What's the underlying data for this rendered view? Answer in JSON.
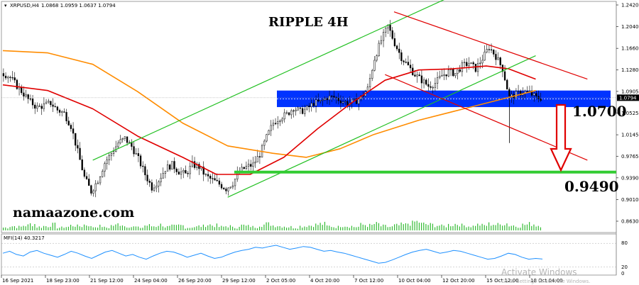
{
  "header": {
    "symbol": "XRPUSD,H4",
    "ohlc": "1.0868 1.0959 1.0637 1.0794"
  },
  "annotations": {
    "title": "RIPPLE 4H",
    "site": "namaazone.com",
    "level_upper": "1.0700",
    "level_lower": "0.9490"
  },
  "price_axis": {
    "labels": [
      "1.2420",
      "1.2040",
      "1.1660",
      "1.1280",
      "1.0905",
      "1.0525",
      "1.0145",
      "0.9765",
      "0.9390",
      "0.9010",
      "0.8630"
    ],
    "current_price_label": "1.0794"
  },
  "mfi_panel": {
    "label": "MFI(14) 40.3217",
    "axis_labels": [
      "80",
      "20",
      "0"
    ],
    "levels": [
      80,
      20
    ],
    "line_color": "#1e90ff"
  },
  "time_axis": {
    "labels": [
      "16 Sep 2021",
      "18 Sep 23:00",
      "21 Sep 12:00",
      "24 Sep 04:00",
      "26 Sep 20:00",
      "29 Sep 12:00",
      "2 Oct 05:00",
      "4 Oct 20:00",
      "7 Oct 12:00",
      "10 Oct 04:00",
      "12 Oct 20:00",
      "15 Oct 12:00",
      "18 Oct 04:00"
    ]
  },
  "watermark": {
    "line1": "Activate Windows",
    "line2": "Go to Settings to activate Windows."
  },
  "colors": {
    "candle": "#000000",
    "ma_fast": "#e00000",
    "ma_slow": "#ff8c00",
    "channel_up": "#22c022",
    "channel_down": "#e00000",
    "resistance_box": "#0033ff",
    "support_line": "#33cc33",
    "volume": "#33bb33",
    "arrow": "#e00000",
    "mfi_line": "#1e90ff"
  },
  "chart_data": {
    "type": "candlestick",
    "title": "RIPPLE 4H",
    "ylim": [
      0.863,
      1.242
    ],
    "x_range": [
      "16 Sep 2021",
      "18 Oct 04:00"
    ],
    "price_path": [
      [
        0,
        1.122
      ],
      [
        3,
        1.115
      ],
      [
        6,
        1.1
      ],
      [
        9,
        1.086
      ],
      [
        12,
        1.072
      ],
      [
        15,
        1.062
      ],
      [
        18,
        1.066
      ],
      [
        21,
        1.07
      ],
      [
        24,
        1.058
      ],
      [
        27,
        1.052
      ],
      [
        30,
        1.03
      ],
      [
        33,
        0.985
      ],
      [
        36,
        0.94
      ],
      [
        39,
        0.915
      ],
      [
        42,
        0.935
      ],
      [
        45,
        0.965
      ],
      [
        48,
        0.982
      ],
      [
        51,
        1.0
      ],
      [
        54,
        1.008
      ],
      [
        57,
        0.994
      ],
      [
        60,
        0.972
      ],
      [
        63,
        0.945
      ],
      [
        66,
        0.922
      ],
      [
        69,
        0.935
      ],
      [
        72,
        0.955
      ],
      [
        75,
        0.962
      ],
      [
        78,
        0.95
      ],
      [
        81,
        0.945
      ],
      [
        84,
        0.962
      ],
      [
        87,
        0.958
      ],
      [
        90,
        0.942
      ],
      [
        93,
        0.935
      ],
      [
        96,
        0.928
      ],
      [
        99,
        0.92
      ],
      [
        102,
        0.93
      ],
      [
        105,
        0.95
      ],
      [
        108,
        0.958
      ],
      [
        111,
        0.962
      ],
      [
        114,
        0.98
      ],
      [
        117,
        1.01
      ],
      [
        120,
        1.035
      ],
      [
        123,
        1.045
      ],
      [
        126,
        1.05
      ],
      [
        129,
        1.062
      ],
      [
        132,
        1.055
      ],
      [
        135,
        1.06
      ],
      [
        138,
        1.07
      ],
      [
        141,
        1.072
      ],
      [
        144,
        1.08
      ],
      [
        147,
        1.08
      ],
      [
        150,
        1.075
      ],
      [
        153,
        1.07
      ],
      [
        156,
        1.072
      ],
      [
        159,
        1.08
      ],
      [
        162,
        1.095
      ],
      [
        165,
        1.148
      ],
      [
        168,
        1.18
      ],
      [
        171,
        1.205
      ],
      [
        174,
        1.175
      ],
      [
        177,
        1.15
      ],
      [
        180,
        1.135
      ],
      [
        183,
        1.12
      ],
      [
        186,
        1.11
      ],
      [
        189,
        1.1
      ],
      [
        192,
        1.105
      ],
      [
        195,
        1.118
      ],
      [
        198,
        1.125
      ],
      [
        201,
        1.122
      ],
      [
        204,
        1.135
      ],
      [
        207,
        1.14
      ],
      [
        210,
        1.13
      ],
      [
        213,
        1.148
      ],
      [
        216,
        1.168
      ],
      [
        219,
        1.152
      ],
      [
        222,
        1.13
      ],
      [
        225,
        1.08
      ],
      [
        228,
        1.085
      ],
      [
        231,
        1.09
      ],
      [
        234,
        1.088
      ],
      [
        237,
        1.079
      ]
    ],
    "volume": [
      4,
      6,
      5,
      7,
      9,
      5,
      6,
      8,
      4,
      5,
      7,
      6,
      8,
      5,
      6,
      4,
      7,
      9,
      6,
      5,
      4,
      7,
      6,
      8,
      5,
      6,
      7,
      4,
      5,
      6,
      8,
      7,
      5,
      6,
      4,
      7,
      6,
      5,
      8,
      9,
      7,
      6,
      5,
      4,
      6,
      7,
      8,
      9,
      6,
      5,
      7,
      6,
      5,
      8,
      7,
      9,
      6,
      5,
      7,
      8,
      10,
      12,
      9,
      8,
      7,
      6,
      8,
      9,
      7,
      6,
      8,
      7,
      9,
      8,
      10,
      7,
      6,
      8,
      9,
      7
    ],
    "mfi": [
      55,
      60,
      52,
      48,
      58,
      62,
      55,
      50,
      45,
      52,
      60,
      55,
      48,
      42,
      50,
      58,
      62,
      55,
      48,
      52,
      45,
      40,
      48,
      55,
      60,
      58,
      52,
      45,
      50,
      55,
      48,
      42,
      45,
      52,
      58,
      62,
      65,
      70,
      68,
      72,
      75,
      70,
      65,
      68,
      72,
      70,
      65,
      60,
      62,
      58,
      55,
      50,
      45,
      40,
      35,
      30,
      32,
      38,
      45,
      52,
      58,
      62,
      65,
      60,
      55,
      58,
      62,
      60,
      55,
      50,
      45,
      40,
      42,
      48,
      55,
      52,
      45,
      40,
      42,
      40.32
    ],
    "ma_fast": [
      [
        0,
        1.102
      ],
      [
        20,
        1.092
      ],
      [
        40,
        1.06
      ],
      [
        60,
        1.012
      ],
      [
        80,
        0.975
      ],
      [
        95,
        0.945
      ],
      [
        110,
        0.945
      ],
      [
        125,
        0.975
      ],
      [
        140,
        1.025
      ],
      [
        155,
        1.07
      ],
      [
        170,
        1.11
      ],
      [
        185,
        1.128
      ],
      [
        200,
        1.13
      ],
      [
        215,
        1.135
      ],
      [
        225,
        1.13
      ],
      [
        237,
        1.112
      ]
    ],
    "ma_slow": [
      [
        0,
        1.162
      ],
      [
        20,
        1.158
      ],
      [
        40,
        1.138
      ],
      [
        60,
        1.09
      ],
      [
        80,
        1.035
      ],
      [
        100,
        0.995
      ],
      [
        120,
        0.982
      ],
      [
        135,
        0.975
      ],
      [
        150,
        0.99
      ],
      [
        165,
        1.015
      ],
      [
        185,
        1.04
      ],
      [
        205,
        1.06
      ],
      [
        225,
        1.08
      ],
      [
        237,
        1.092
      ]
    ],
    "channel_up_lower": [
      [
        100,
        0.905
      ],
      [
        237,
        1.153
      ]
    ],
    "channel_up_upper": [
      [
        40,
        0.97
      ],
      [
        200,
        1.258
      ]
    ],
    "channel_down_upper": [
      [
        174,
        1.23
      ],
      [
        260,
        1.112
      ]
    ],
    "channel_down_lower": [
      [
        170,
        1.12
      ],
      [
        260,
        0.97
      ]
    ],
    "resistance_zone": [
      1.063,
      1.092
    ],
    "support_level": 0.949,
    "targets": [
      1.07,
      0.949
    ],
    "current_price": 1.0794
  }
}
